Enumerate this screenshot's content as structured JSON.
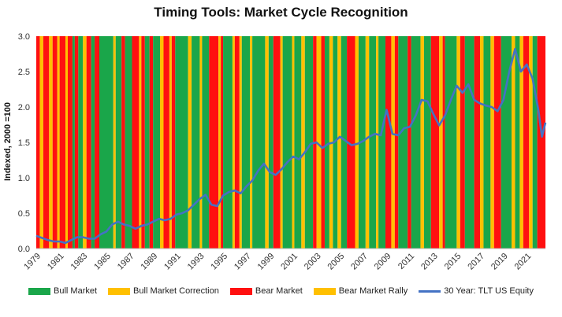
{
  "chart_data": {
    "type": "area",
    "title": "Timing Tools: Market Cycle Recognition",
    "ylabel": "Indexed, 2000 =100",
    "xlabel": "",
    "ylim": [
      0,
      3.0
    ],
    "xlim": [
      1979,
      2022.6
    ],
    "yticks": [
      "0.0",
      "0.5",
      "1.0",
      "1.5",
      "2.0",
      "2.5",
      "3.0"
    ],
    "xticks": [
      "1979",
      "1981",
      "1983",
      "1985",
      "1987",
      "1989",
      "1991",
      "1993",
      "1995",
      "1997",
      "1999",
      "2001",
      "2003",
      "2005",
      "2007",
      "2009",
      "2011",
      "2013",
      "2015",
      "2017",
      "2019",
      "2021"
    ],
    "grid": false,
    "legend_position": "bottom",
    "regime_colors": {
      "Bull Market": "#1aa64a",
      "Bull Market Correction": "#ffc000",
      "Bear Market": "#ff1010",
      "Bear Market Rally": "#ffc000"
    },
    "regimes": [
      {
        "start": 1979.0,
        "end": 1979.3,
        "regime": "Bear Market"
      },
      {
        "start": 1979.3,
        "end": 1979.6,
        "regime": "Bear Market Rally"
      },
      {
        "start": 1979.6,
        "end": 1980.1,
        "regime": "Bear Market"
      },
      {
        "start": 1980.1,
        "end": 1980.4,
        "regime": "Bear Market Rally"
      },
      {
        "start": 1980.4,
        "end": 1980.8,
        "regime": "Bear Market"
      },
      {
        "start": 1980.8,
        "end": 1981.0,
        "regime": "Bear Market Rally"
      },
      {
        "start": 1981.0,
        "end": 1981.5,
        "regime": "Bear Market"
      },
      {
        "start": 1981.5,
        "end": 1981.7,
        "regime": "Bear Market Rally"
      },
      {
        "start": 1981.7,
        "end": 1982.1,
        "regime": "Bear Market"
      },
      {
        "start": 1982.1,
        "end": 1982.3,
        "regime": "Bull Market"
      },
      {
        "start": 1982.3,
        "end": 1982.6,
        "regime": "Bear Market"
      },
      {
        "start": 1982.6,
        "end": 1983.0,
        "regime": "Bull Market"
      },
      {
        "start": 1983.0,
        "end": 1983.3,
        "regime": "Bear Market Rally"
      },
      {
        "start": 1983.3,
        "end": 1983.7,
        "regime": "Bear Market"
      },
      {
        "start": 1983.7,
        "end": 1984.0,
        "regime": "Bull Market"
      },
      {
        "start": 1984.0,
        "end": 1984.4,
        "regime": "Bear Market"
      },
      {
        "start": 1984.4,
        "end": 1985.6,
        "regime": "Bull Market"
      },
      {
        "start": 1985.6,
        "end": 1985.8,
        "regime": "Bull Market Correction"
      },
      {
        "start": 1985.8,
        "end": 1986.3,
        "regime": "Bull Market"
      },
      {
        "start": 1986.3,
        "end": 1986.6,
        "regime": "Bear Market"
      },
      {
        "start": 1986.6,
        "end": 1987.2,
        "regime": "Bull Market"
      },
      {
        "start": 1987.2,
        "end": 1987.8,
        "regime": "Bear Market"
      },
      {
        "start": 1987.8,
        "end": 1988.0,
        "regime": "Bear Market Rally"
      },
      {
        "start": 1988.0,
        "end": 1988.3,
        "regime": "Bear Market"
      },
      {
        "start": 1988.3,
        "end": 1988.7,
        "regime": "Bull Market"
      },
      {
        "start": 1988.7,
        "end": 1989.0,
        "regime": "Bear Market"
      },
      {
        "start": 1989.0,
        "end": 1989.6,
        "regime": "Bull Market"
      },
      {
        "start": 1989.6,
        "end": 1989.9,
        "regime": "Bull Market Correction"
      },
      {
        "start": 1989.9,
        "end": 1990.4,
        "regime": "Bear Market"
      },
      {
        "start": 1990.4,
        "end": 1990.6,
        "regime": "Bear Market Rally"
      },
      {
        "start": 1990.6,
        "end": 1990.9,
        "regime": "Bear Market"
      },
      {
        "start": 1990.9,
        "end": 1992.0,
        "regime": "Bull Market"
      },
      {
        "start": 1992.0,
        "end": 1992.3,
        "regime": "Bull Market Correction"
      },
      {
        "start": 1992.3,
        "end": 1993.0,
        "regime": "Bull Market"
      },
      {
        "start": 1993.0,
        "end": 1993.2,
        "regime": "Bull Market Correction"
      },
      {
        "start": 1993.2,
        "end": 1993.8,
        "regime": "Bull Market"
      },
      {
        "start": 1993.8,
        "end": 1994.6,
        "regime": "Bear Market"
      },
      {
        "start": 1994.6,
        "end": 1994.8,
        "regime": "Bear Market Rally"
      },
      {
        "start": 1994.8,
        "end": 1995.0,
        "regime": "Bear Market"
      },
      {
        "start": 1995.0,
        "end": 1995.8,
        "regime": "Bull Market"
      },
      {
        "start": 1995.8,
        "end": 1996.0,
        "regime": "Bull Market Correction"
      },
      {
        "start": 1996.0,
        "end": 1996.4,
        "regime": "Bear Market"
      },
      {
        "start": 1996.4,
        "end": 1996.6,
        "regime": "Bear Market Rally"
      },
      {
        "start": 1996.6,
        "end": 1997.3,
        "regime": "Bull Market"
      },
      {
        "start": 1997.3,
        "end": 1997.5,
        "regime": "Bull Market Correction"
      },
      {
        "start": 1997.5,
        "end": 1998.6,
        "regime": "Bull Market"
      },
      {
        "start": 1998.6,
        "end": 1998.9,
        "regime": "Bull Market Correction"
      },
      {
        "start": 1998.9,
        "end": 1999.3,
        "regime": "Bull Market"
      },
      {
        "start": 1999.3,
        "end": 1999.9,
        "regime": "Bear Market"
      },
      {
        "start": 1999.9,
        "end": 2000.1,
        "regime": "Bear Market Rally"
      },
      {
        "start": 2000.1,
        "end": 2000.9,
        "regime": "Bull Market"
      },
      {
        "start": 2000.9,
        "end": 2001.1,
        "regime": "Bull Market Correction"
      },
      {
        "start": 2001.1,
        "end": 2001.7,
        "regime": "Bull Market"
      },
      {
        "start": 2001.7,
        "end": 2002.0,
        "regime": "Bull Market Correction"
      },
      {
        "start": 2002.0,
        "end": 2002.7,
        "regime": "Bull Market"
      },
      {
        "start": 2002.7,
        "end": 2003.0,
        "regime": "Bear Market"
      },
      {
        "start": 2003.0,
        "end": 2003.4,
        "regime": "Bull Market Correction"
      },
      {
        "start": 2003.4,
        "end": 2003.7,
        "regime": "Bear Market"
      },
      {
        "start": 2003.7,
        "end": 2004.1,
        "regime": "Bull Market"
      },
      {
        "start": 2004.1,
        "end": 2004.4,
        "regime": "Bull Market Correction"
      },
      {
        "start": 2004.4,
        "end": 2004.8,
        "regime": "Bull Market"
      },
      {
        "start": 2004.8,
        "end": 2005.1,
        "regime": "Bull Market Correction"
      },
      {
        "start": 2005.1,
        "end": 2005.6,
        "regime": "Bull Market"
      },
      {
        "start": 2005.6,
        "end": 2006.3,
        "regime": "Bear Market"
      },
      {
        "start": 2006.3,
        "end": 2006.6,
        "regime": "Bear Market Rally"
      },
      {
        "start": 2006.6,
        "end": 2007.2,
        "regime": "Bull Market"
      },
      {
        "start": 2007.2,
        "end": 2007.5,
        "regime": "Bull Market Correction"
      },
      {
        "start": 2007.5,
        "end": 2008.1,
        "regime": "Bull Market"
      },
      {
        "start": 2008.1,
        "end": 2008.3,
        "regime": "Bull Market Correction"
      },
      {
        "start": 2008.3,
        "end": 2008.9,
        "regime": "Bull Market"
      },
      {
        "start": 2008.9,
        "end": 2009.4,
        "regime": "Bear Market"
      },
      {
        "start": 2009.4,
        "end": 2009.7,
        "regime": "Bear Market Rally"
      },
      {
        "start": 2009.7,
        "end": 2010.0,
        "regime": "Bear Market"
      },
      {
        "start": 2010.0,
        "end": 2010.8,
        "regime": "Bull Market"
      },
      {
        "start": 2010.8,
        "end": 2011.1,
        "regime": "Bear Market"
      },
      {
        "start": 2011.1,
        "end": 2011.9,
        "regime": "Bull Market"
      },
      {
        "start": 2011.9,
        "end": 2012.2,
        "regime": "Bull Market Correction"
      },
      {
        "start": 2012.2,
        "end": 2012.8,
        "regime": "Bull Market"
      },
      {
        "start": 2012.8,
        "end": 2013.5,
        "regime": "Bear Market"
      },
      {
        "start": 2013.5,
        "end": 2013.8,
        "regime": "Bear Market Rally"
      },
      {
        "start": 2013.8,
        "end": 2014.0,
        "regime": "Bear Market"
      },
      {
        "start": 2014.0,
        "end": 2015.0,
        "regime": "Bull Market"
      },
      {
        "start": 2015.0,
        "end": 2015.3,
        "regime": "Bull Market Correction"
      },
      {
        "start": 2015.3,
        "end": 2015.7,
        "regime": "Bear Market"
      },
      {
        "start": 2015.7,
        "end": 2016.5,
        "regime": "Bull Market"
      },
      {
        "start": 2016.5,
        "end": 2017.0,
        "regime": "Bear Market"
      },
      {
        "start": 2017.0,
        "end": 2017.3,
        "regime": "Bear Market Rally"
      },
      {
        "start": 2017.3,
        "end": 2017.9,
        "regime": "Bull Market"
      },
      {
        "start": 2017.9,
        "end": 2018.2,
        "regime": "Bull Market Correction"
      },
      {
        "start": 2018.2,
        "end": 2018.8,
        "regime": "Bear Market"
      },
      {
        "start": 2018.8,
        "end": 2019.7,
        "regime": "Bull Market"
      },
      {
        "start": 2019.7,
        "end": 2020.0,
        "regime": "Bull Market Correction"
      },
      {
        "start": 2020.0,
        "end": 2020.4,
        "regime": "Bull Market"
      },
      {
        "start": 2020.4,
        "end": 2020.7,
        "regime": "Bull Market Correction"
      },
      {
        "start": 2020.7,
        "end": 2021.2,
        "regime": "Bear Market"
      },
      {
        "start": 2021.2,
        "end": 2021.5,
        "regime": "Bear Market Rally"
      },
      {
        "start": 2021.5,
        "end": 2021.9,
        "regime": "Bull Market"
      },
      {
        "start": 2021.9,
        "end": 2022.6,
        "regime": "Bear Market"
      }
    ],
    "series": [
      {
        "name": "30 Year: TLT US Equity",
        "color": "#4472c4",
        "x": [
          1979.0,
          1979.5,
          1980.0,
          1980.5,
          1981.0,
          1981.5,
          1982.0,
          1982.5,
          1983.0,
          1983.5,
          1984.0,
          1984.5,
          1985.0,
          1985.5,
          1986.0,
          1986.5,
          1987.0,
          1987.5,
          1988.0,
          1988.5,
          1989.0,
          1989.5,
          1990.0,
          1990.5,
          1991.0,
          1991.5,
          1992.0,
          1992.5,
          1993.0,
          1993.5,
          1994.0,
          1994.5,
          1995.0,
          1995.5,
          1996.0,
          1996.5,
          1997.0,
          1997.5,
          1998.0,
          1998.5,
          1999.0,
          1999.5,
          2000.0,
          2000.5,
          2001.0,
          2001.5,
          2002.0,
          2002.5,
          2003.0,
          2003.5,
          2004.0,
          2004.5,
          2005.0,
          2005.5,
          2006.0,
          2006.5,
          2007.0,
          2007.5,
          2008.0,
          2008.5,
          2009.0,
          2009.5,
          2010.0,
          2010.5,
          2011.0,
          2011.5,
          2012.0,
          2012.5,
          2013.0,
          2013.5,
          2014.0,
          2014.5,
          2015.0,
          2015.5,
          2016.0,
          2016.5,
          2017.0,
          2017.5,
          2018.0,
          2018.5,
          2019.0,
          2019.5,
          2020.0,
          2020.5,
          2021.0,
          2021.5,
          2022.0,
          2022.3,
          2022.6
        ],
        "values": [
          0.18,
          0.15,
          0.12,
          0.1,
          0.1,
          0.08,
          0.12,
          0.16,
          0.16,
          0.14,
          0.14,
          0.2,
          0.24,
          0.34,
          0.38,
          0.34,
          0.32,
          0.28,
          0.32,
          0.34,
          0.38,
          0.42,
          0.4,
          0.42,
          0.48,
          0.5,
          0.54,
          0.62,
          0.7,
          0.76,
          0.62,
          0.6,
          0.75,
          0.8,
          0.82,
          0.78,
          0.88,
          0.96,
          1.1,
          1.2,
          1.08,
          1.04,
          1.12,
          1.22,
          1.3,
          1.26,
          1.36,
          1.48,
          1.5,
          1.42,
          1.48,
          1.5,
          1.58,
          1.52,
          1.46,
          1.48,
          1.52,
          1.58,
          1.62,
          1.6,
          1.96,
          1.62,
          1.6,
          1.7,
          1.72,
          1.88,
          2.1,
          2.08,
          1.9,
          1.74,
          1.88,
          2.1,
          2.3,
          2.2,
          2.32,
          2.1,
          2.05,
          2.02,
          2.0,
          1.94,
          2.1,
          2.5,
          2.82,
          2.5,
          2.6,
          2.4,
          1.95,
          1.58,
          1.78
        ]
      }
    ],
    "legend": [
      "Bull Market",
      "Bull Market Correction",
      "Bear Market",
      "Bear Market Rally",
      "30 Year: TLT US Equity"
    ]
  }
}
